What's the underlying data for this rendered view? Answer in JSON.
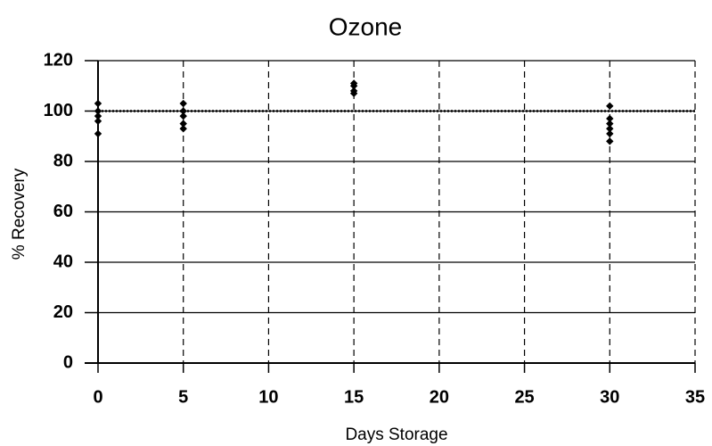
{
  "chart_data": {
    "type": "scatter",
    "title": "Ozone",
    "x_label": "Days Storage",
    "y_label": "% Recovery",
    "x": [
      0,
      0,
      0,
      0,
      0,
      5,
      5,
      5,
      5,
      5,
      15,
      15,
      15,
      15,
      30,
      30,
      30,
      30,
      30,
      30
    ],
    "y": [
      103,
      100,
      98,
      96,
      91,
      103,
      100,
      98,
      95,
      93,
      111,
      110,
      108,
      107,
      102,
      97,
      95,
      93,
      91,
      88
    ],
    "color": "#000000",
    "reference_line": 100,
    "xlim": [
      0,
      35
    ],
    "xticks": [
      0,
      5,
      10,
      15,
      20,
      25,
      30,
      35
    ],
    "ylim": [
      0,
      120
    ],
    "yticks": [
      0,
      20,
      40,
      60,
      80,
      100,
      120
    ],
    "grid": true
  }
}
